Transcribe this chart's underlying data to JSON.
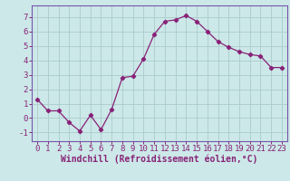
{
  "x": [
    0,
    1,
    2,
    3,
    4,
    5,
    6,
    7,
    8,
    9,
    10,
    11,
    12,
    13,
    14,
    15,
    16,
    17,
    18,
    19,
    20,
    21,
    22,
    23
  ],
  "y": [
    1.3,
    0.5,
    0.5,
    -0.3,
    -0.9,
    0.2,
    -0.8,
    0.6,
    2.8,
    2.9,
    4.1,
    5.8,
    6.7,
    6.8,
    7.1,
    6.7,
    6.0,
    5.3,
    4.9,
    4.6,
    4.4,
    4.3,
    3.5,
    3.5
  ],
  "line_color": "#882277",
  "marker": "D",
  "marker_size": 2.2,
  "bg_color": "#cce8e8",
  "grid_color": "#aacccc",
  "xlabel": "Windchill (Refroidissement éolien,°C)",
  "xlim": [
    -0.5,
    23.5
  ],
  "ylim": [
    -1.6,
    7.8
  ],
  "yticks": [
    -1,
    0,
    1,
    2,
    3,
    4,
    5,
    6,
    7
  ],
  "xticks": [
    0,
    1,
    2,
    3,
    4,
    5,
    6,
    7,
    8,
    9,
    10,
    11,
    12,
    13,
    14,
    15,
    16,
    17,
    18,
    19,
    20,
    21,
    22,
    23
  ],
  "tick_fontsize": 6.5,
  "xlabel_fontsize": 7,
  "spine_color": "#7755aa",
  "axis_bg": "#cce8e8"
}
